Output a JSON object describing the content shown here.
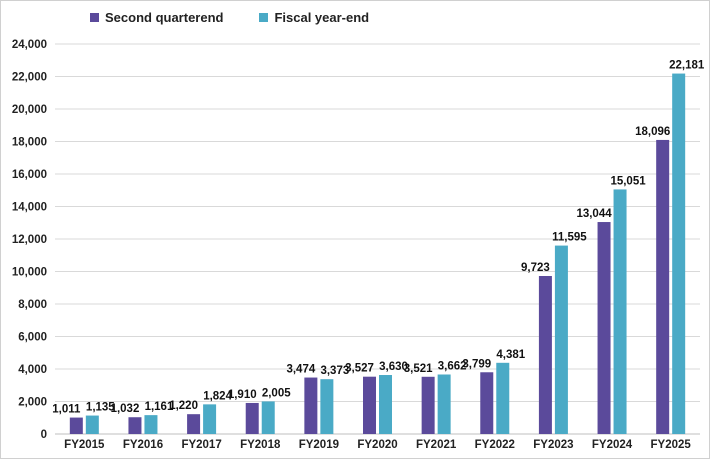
{
  "chart_data": {
    "type": "bar",
    "title": "",
    "xlabel": "",
    "ylabel": "",
    "categories": [
      "FY2015",
      "FY2016",
      "FY2017",
      "FY2018",
      "FY2019",
      "FY2020",
      "FY2021",
      "FY2022",
      "FY2023",
      "FY2024",
      "FY2025"
    ],
    "series": [
      {
        "name": "Second quarterend",
        "color": "#5b4a9b",
        "values": [
          1011,
          1032,
          1220,
          1910,
          3474,
          3527,
          3521,
          3799,
          9723,
          13044,
          18096
        ]
      },
      {
        "name": "Fiscal year-end",
        "color": "#4aaac6",
        "values": [
          1135,
          1161,
          1824,
          2005,
          3373,
          3630,
          3662,
          4381,
          11595,
          15051,
          22181
        ]
      }
    ],
    "ylim": [
      0,
      24000
    ],
    "yticks": [
      0,
      2000,
      4000,
      6000,
      8000,
      10000,
      12000,
      14000,
      16000,
      18000,
      20000,
      22000,
      24000
    ],
    "grid": true,
    "legend": "top-left"
  }
}
